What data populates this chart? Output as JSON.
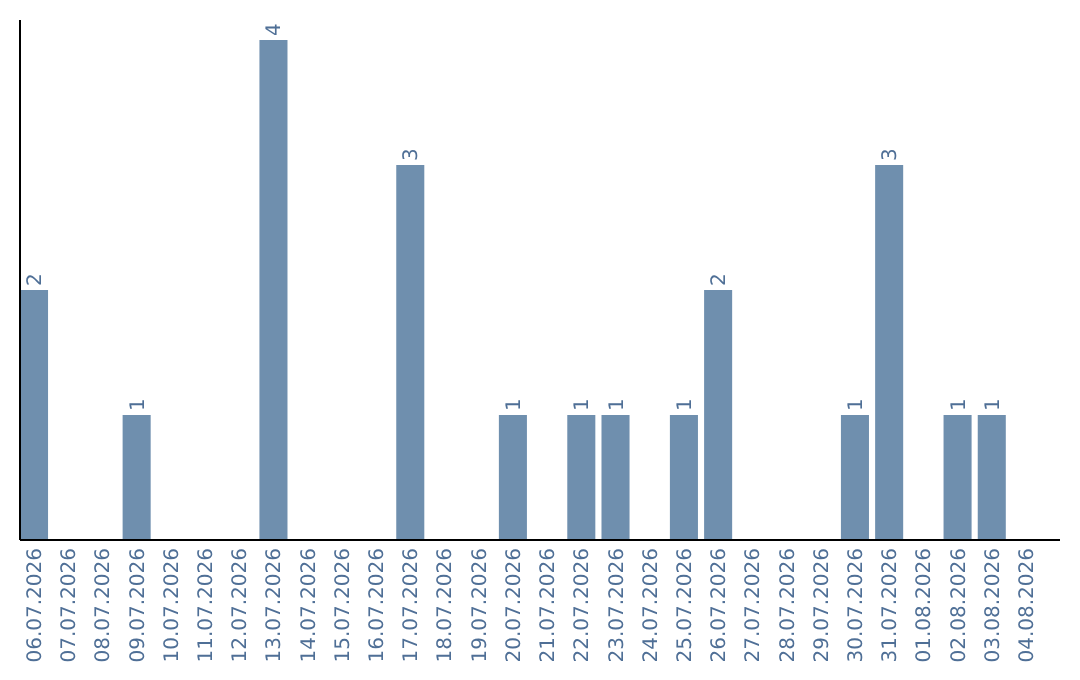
{
  "chart_data": {
    "type": "bar",
    "categories": [
      "06.07.2026",
      "07.07.2026",
      "08.07.2026",
      "09.07.2026",
      "10.07.2026",
      "11.07.2026",
      "12.07.2026",
      "13.07.2026",
      "14.07.2026",
      "15.07.2026",
      "16.07.2026",
      "17.07.2026",
      "18.07.2026",
      "19.07.2026",
      "20.07.2026",
      "21.07.2026",
      "22.07.2026",
      "23.07.2026",
      "24.07.2026",
      "25.07.2026",
      "26.07.2026",
      "27.07.2026",
      "28.07.2026",
      "29.07.2026",
      "30.07.2026",
      "31.07.2026",
      "01.08.2026",
      "02.08.2026",
      "03.08.2026",
      "04.08.2026"
    ],
    "values": [
      2,
      0,
      0,
      1,
      0,
      0,
      0,
      4,
      0,
      0,
      0,
      3,
      0,
      0,
      1,
      0,
      1,
      1,
      0,
      1,
      2,
      0,
      0,
      0,
      1,
      3,
      0,
      1,
      1,
      0
    ],
    "value_labels": [
      "2",
      null,
      null,
      "1",
      null,
      null,
      null,
      "4",
      null,
      null,
      null,
      "3",
      null,
      null,
      "1",
      null,
      "1",
      "1",
      null,
      "1",
      "2",
      null,
      null,
      null,
      "1",
      "3",
      null,
      "1",
      "1",
      null
    ],
    "color": "#6f8fae",
    "tick_labels": "x"
  }
}
